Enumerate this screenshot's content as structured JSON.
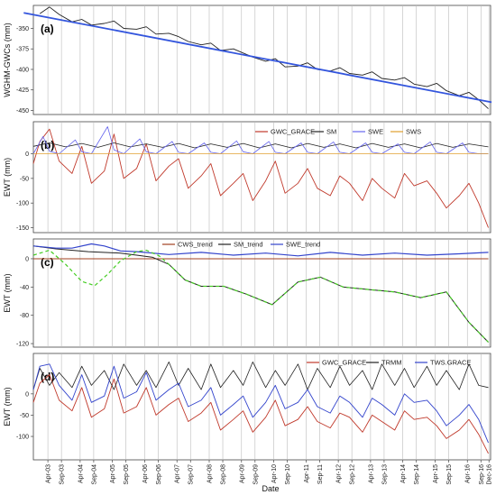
{
  "chart_data": [
    {
      "type": "line",
      "panel_label": "(a)",
      "ylabel": "WGHM-GWCs (mm)",
      "ylim": [
        -455,
        -322
      ],
      "yticks": [
        -350,
        -375,
        -400,
        -425,
        -450
      ],
      "series": [
        {
          "color": "#222222",
          "width": 0.9,
          "x": [
            2003.0,
            2003.3,
            2003.6,
            2004.0,
            2004.3,
            2004.6,
            2005.0,
            2005.3,
            2005.6,
            2006.0,
            2006.3,
            2006.6,
            2007.0,
            2007.3,
            2007.6,
            2008.0,
            2008.3,
            2008.6,
            2009.0,
            2009.3,
            2009.6,
            2010.0,
            2010.3,
            2010.6,
            2011.0,
            2011.3,
            2011.6,
            2012.0,
            2012.3,
            2012.6,
            2013.0,
            2013.3,
            2013.6,
            2014.0,
            2014.3,
            2014.6,
            2015.0,
            2015.3,
            2015.6,
            2016.0,
            2016.3,
            2016.6,
            2016.9
          ],
          "values": [
            -332,
            -324,
            -333,
            -342,
            -339,
            -346,
            -344,
            -341,
            -350,
            -351,
            -348,
            -357,
            -356,
            -360,
            -366,
            -370,
            -368,
            -377,
            -375,
            -380,
            -385,
            -390,
            -387,
            -397,
            -396,
            -392,
            -400,
            -402,
            -398,
            -405,
            -407,
            -403,
            -411,
            -413,
            -410,
            -418,
            -421,
            -417,
            -426,
            -432,
            -428,
            -437,
            -448
          ]
        },
        {
          "color": "#3355dd",
          "width": 1.8,
          "x": [
            2002.5,
            2017.0
          ],
          "values": [
            -331,
            -440
          ]
        }
      ]
    },
    {
      "type": "line",
      "panel_label": "(b)",
      "ylabel": "EWT (mm)",
      "ylim": [
        -160,
        65
      ],
      "yticks": [
        0,
        -50,
        -100,
        -150
      ],
      "legend": [
        "GWC_GRACE",
        "SM",
        "SWE",
        "SWS"
      ],
      "series": [
        {
          "name": "GWC_GRACE",
          "color": "#c0392b",
          "width": 0.9,
          "x": [
            2002.8,
            2003.0,
            2003.3,
            2003.6,
            2004.0,
            2004.3,
            2004.6,
            2005.0,
            2005.3,
            2005.6,
            2006.0,
            2006.3,
            2006.6,
            2007.0,
            2007.3,
            2007.6,
            2008.0,
            2008.3,
            2008.6,
            2009.0,
            2009.3,
            2009.6,
            2010.0,
            2010.3,
            2010.6,
            2011.0,
            2011.3,
            2011.6,
            2012.0,
            2012.3,
            2012.6,
            2013.0,
            2013.3,
            2013.6,
            2014.0,
            2014.3,
            2014.6,
            2015.0,
            2015.3,
            2015.6,
            2016.0,
            2016.3,
            2016.6,
            2016.9
          ],
          "values": [
            -20,
            25,
            50,
            -15,
            -40,
            15,
            -60,
            -35,
            40,
            -50,
            -30,
            20,
            -55,
            -25,
            -10,
            -70,
            -45,
            -20,
            -85,
            -60,
            -40,
            -95,
            -55,
            -15,
            -80,
            -60,
            -30,
            -70,
            -85,
            -45,
            -60,
            -95,
            -50,
            -70,
            -90,
            -40,
            -65,
            -55,
            -80,
            -110,
            -85,
            -60,
            -100,
            -150
          ]
        },
        {
          "name": "SM",
          "color": "#222222",
          "width": 0.8,
          "x": [
            2002.8,
            2003.3,
            2003.8,
            2004.3,
            2004.8,
            2005.3,
            2005.8,
            2006.3,
            2006.8,
            2007.3,
            2007.8,
            2008.3,
            2008.8,
            2009.3,
            2009.8,
            2010.3,
            2010.8,
            2011.3,
            2011.8,
            2012.3,
            2012.8,
            2013.3,
            2013.8,
            2014.3,
            2014.8,
            2015.3,
            2015.8,
            2016.3,
            2016.9
          ],
          "values": [
            15,
            22,
            14,
            21,
            13,
            22,
            14,
            20,
            13,
            21,
            12,
            20,
            13,
            21,
            12,
            20,
            12,
            21,
            13,
            20,
            12,
            21,
            13,
            20,
            12,
            21,
            13,
            20,
            14
          ]
        },
        {
          "name": "SWE",
          "color": "#6666ee",
          "width": 0.8,
          "x": [
            2002.8,
            2003.1,
            2003.3,
            2003.6,
            2004.1,
            2004.3,
            2004.6,
            2005.1,
            2005.3,
            2005.6,
            2006.1,
            2006.3,
            2006.6,
            2007.1,
            2007.3,
            2007.6,
            2008.1,
            2008.3,
            2008.6,
            2009.1,
            2009.3,
            2009.6,
            2010.1,
            2010.3,
            2010.6,
            2011.1,
            2011.3,
            2011.6,
            2012.1,
            2012.3,
            2012.6,
            2013.1,
            2013.3,
            2013.6,
            2014.1,
            2014.3,
            2014.6,
            2015.1,
            2015.3,
            2015.6,
            2016.1,
            2016.3,
            2016.6,
            2016.9
          ],
          "values": [
            0,
            35,
            5,
            0,
            28,
            4,
            0,
            55,
            8,
            0,
            30,
            4,
            0,
            25,
            3,
            0,
            22,
            3,
            0,
            26,
            4,
            0,
            25,
            3,
            0,
            22,
            3,
            0,
            24,
            3,
            0,
            22,
            3,
            0,
            20,
            3,
            0,
            24,
            3,
            0,
            22,
            3,
            0,
            0
          ]
        },
        {
          "name": "SWS",
          "color": "#e0a030",
          "width": 0.8,
          "x": [
            2002.8,
            2016.9
          ],
          "values": [
            0,
            0
          ]
        }
      ]
    },
    {
      "type": "line",
      "panel_label": "(c)",
      "ylabel": "EWT (mm)",
      "ylim": [
        -125,
        28
      ],
      "yticks": [
        0,
        -40,
        -80,
        -120
      ],
      "legend": [
        "CWS_trend",
        "SM_trend",
        "SWE_trend"
      ],
      "series": [
        {
          "name": "CWS_trend",
          "color": "#a04020",
          "width": 1.0,
          "x": [
            2002.8,
            2016.9
          ],
          "values": [
            0,
            0
          ]
        },
        {
          "name": "SM_trend",
          "color": "#222222",
          "width": 1.0,
          "x": [
            2002.8,
            2003.5,
            2004.5,
            2005.5,
            2006.0,
            2006.5,
            2007.0,
            2007.5,
            2008.0,
            2008.7,
            2009.4,
            2010.2,
            2011.0,
            2011.7,
            2012.4,
            2013.3,
            2014.0,
            2014.8,
            2015.6,
            2016.3,
            2016.9
          ],
          "values": [
            18,
            14,
            10,
            8,
            5,
            2,
            -8,
            -30,
            -39,
            -39,
            -50,
            -65,
            -33,
            -26,
            -40,
            -44,
            -47,
            -55,
            -47,
            -90,
            -118
          ]
        },
        {
          "name": "SWE_trend",
          "color": "#3344cc",
          "width": 1.2,
          "x": [
            2002.8,
            2003.5,
            2004.0,
            2004.6,
            2005.0,
            2005.5,
            2006.0,
            2007.0,
            2008.0,
            2009.0,
            2010.0,
            2011.0,
            2012.0,
            2013.0,
            2014.0,
            2015.0,
            2016.0,
            2016.9
          ],
          "values": [
            18,
            15,
            15,
            21,
            18,
            11,
            10,
            6,
            9,
            5,
            8,
            4,
            9,
            5,
            8,
            5,
            7,
            9
          ]
        },
        {
          "name": "",
          "color": "#44cc22",
          "width": 1.2,
          "dash": "4 3",
          "x": [
            2002.8,
            2003.3,
            2003.8,
            2004.3,
            2004.7,
            2005.1,
            2005.5,
            2006.0,
            2006.3,
            2006.7,
            2007.0,
            2007.5,
            2008.0,
            2008.7,
            2009.4,
            2010.2,
            2011.0,
            2011.7,
            2012.4,
            2013.3,
            2014.0,
            2014.8,
            2015.6,
            2016.3,
            2016.9
          ],
          "values": [
            5,
            12,
            -8,
            -32,
            -38,
            -22,
            -3,
            10,
            12,
            4,
            -8,
            -30,
            -39,
            -39,
            -50,
            -65,
            -33,
            -26,
            -40,
            -44,
            -47,
            -55,
            -47,
            -90,
            -118
          ]
        }
      ]
    },
    {
      "type": "line",
      "panel_label": "(d)",
      "ylabel": "EWT (mm)",
      "ylim": [
        -155,
        95
      ],
      "yticks": [
        0,
        -50,
        -100
      ],
      "legend": [
        "GWC_GRACE",
        "TRMM",
        "TWS.GRACE"
      ],
      "series": [
        {
          "name": "GWC_GRACE",
          "color": "#c0392b",
          "width": 0.9,
          "x": [
            2002.8,
            2003.0,
            2003.3,
            2003.6,
            2004.0,
            2004.3,
            2004.6,
            2005.0,
            2005.3,
            2005.6,
            2006.0,
            2006.3,
            2006.6,
            2007.0,
            2007.3,
            2007.6,
            2008.0,
            2008.3,
            2008.6,
            2009.0,
            2009.3,
            2009.6,
            2010.0,
            2010.3,
            2010.6,
            2011.0,
            2011.3,
            2011.6,
            2012.0,
            2012.3,
            2012.6,
            2013.0,
            2013.3,
            2013.6,
            2014.0,
            2014.3,
            2014.6,
            2015.0,
            2015.3,
            2015.6,
            2016.0,
            2016.3,
            2016.6,
            2016.9
          ],
          "values": [
            -20,
            25,
            45,
            -15,
            -40,
            15,
            -55,
            -35,
            35,
            -45,
            -30,
            15,
            -50,
            -25,
            -10,
            -65,
            -45,
            -20,
            -85,
            -60,
            -40,
            -90,
            -55,
            -15,
            -75,
            -60,
            -30,
            -65,
            -80,
            -45,
            -55,
            -90,
            -50,
            -65,
            -85,
            -40,
            -60,
            -55,
            -75,
            -105,
            -85,
            -60,
            -95,
            -140
          ]
        },
        {
          "name": "TRMM",
          "color": "#222222",
          "width": 0.8,
          "x": [
            2002.8,
            2003.0,
            2003.3,
            2003.6,
            2004.0,
            2004.3,
            2004.6,
            2005.0,
            2005.3,
            2005.6,
            2006.0,
            2006.3,
            2006.6,
            2007.0,
            2007.3,
            2007.6,
            2008.0,
            2008.3,
            2008.6,
            2009.0,
            2009.3,
            2009.6,
            2010.0,
            2010.3,
            2010.6,
            2011.0,
            2011.3,
            2011.6,
            2012.0,
            2012.3,
            2012.6,
            2013.0,
            2013.3,
            2013.6,
            2014.0,
            2014.3,
            2014.6,
            2015.0,
            2015.3,
            2015.6,
            2016.0,
            2016.3,
            2016.6,
            2016.9
          ],
          "values": [
            10,
            60,
            20,
            50,
            15,
            65,
            20,
            55,
            10,
            70,
            20,
            55,
            15,
            75,
            20,
            60,
            10,
            70,
            15,
            55,
            20,
            75,
            15,
            55,
            20,
            70,
            10,
            60,
            15,
            65,
            20,
            55,
            10,
            70,
            20,
            60,
            15,
            65,
            20,
            55,
            10,
            70,
            20,
            15
          ]
        },
        {
          "name": "TWS.GRACE",
          "color": "#3344cc",
          "width": 0.9,
          "x": [
            2002.8,
            2003.0,
            2003.3,
            2003.6,
            2004.0,
            2004.3,
            2004.6,
            2005.0,
            2005.3,
            2005.6,
            2006.0,
            2006.3,
            2006.6,
            2007.0,
            2007.3,
            2007.6,
            2008.0,
            2008.3,
            2008.6,
            2009.0,
            2009.3,
            2009.6,
            2010.0,
            2010.3,
            2010.6,
            2011.0,
            2011.3,
            2011.6,
            2012.0,
            2012.3,
            2012.6,
            2013.0,
            2013.3,
            2013.6,
            2014.0,
            2014.3,
            2014.6,
            2015.0,
            2015.3,
            2015.6,
            2016.0,
            2016.3,
            2016.6,
            2016.9
          ],
          "values": [
            10,
            65,
            70,
            20,
            -15,
            45,
            -20,
            -5,
            65,
            -10,
            5,
            50,
            -15,
            10,
            25,
            -30,
            -15,
            15,
            -50,
            -25,
            -5,
            -55,
            -20,
            20,
            -35,
            -20,
            10,
            -30,
            -45,
            -5,
            -20,
            -55,
            -10,
            -25,
            -50,
            0,
            -20,
            -15,
            -40,
            -75,
            -50,
            -25,
            -60,
            -115
          ]
        }
      ]
    }
  ],
  "xaxis": {
    "title": "Date",
    "xlim": [
      2002.8,
      2016.97
    ],
    "ticks": [
      {
        "x": 2003.25,
        "label": "Apr-03"
      },
      {
        "x": 2003.67,
        "label": "Sep-03"
      },
      {
        "x": 2004.25,
        "label": "Apr-04"
      },
      {
        "x": 2004.67,
        "label": "Sep-04"
      },
      {
        "x": 2005.25,
        "label": "Apr-05"
      },
      {
        "x": 2005.67,
        "label": "Sep-05"
      },
      {
        "x": 2006.25,
        "label": "Apr-06"
      },
      {
        "x": 2006.67,
        "label": "Sep-06"
      },
      {
        "x": 2007.25,
        "label": "Apr-07"
      },
      {
        "x": 2007.67,
        "label": "Sep-07"
      },
      {
        "x": 2008.25,
        "label": "Apr-08"
      },
      {
        "x": 2008.67,
        "label": "Sep-08"
      },
      {
        "x": 2009.25,
        "label": "Apr-09"
      },
      {
        "x": 2009.67,
        "label": "Sep-09"
      },
      {
        "x": 2010.25,
        "label": "Apr-10"
      },
      {
        "x": 2010.67,
        "label": "Sep-10"
      },
      {
        "x": 2011.25,
        "label": "Apr-11"
      },
      {
        "x": 2011.67,
        "label": "Sep-11"
      },
      {
        "x": 2012.25,
        "label": "Apr-12"
      },
      {
        "x": 2012.67,
        "label": "Sep-12"
      },
      {
        "x": 2013.25,
        "label": "Apr-13"
      },
      {
        "x": 2013.67,
        "label": "Sep-13"
      },
      {
        "x": 2014.25,
        "label": "Apr-14"
      },
      {
        "x": 2014.67,
        "label": "Sep-14"
      },
      {
        "x": 2015.25,
        "label": "Apr-15"
      },
      {
        "x": 2015.67,
        "label": "Sep-15"
      },
      {
        "x": 2016.25,
        "label": "Apr-16"
      },
      {
        "x": 2016.67,
        "label": "Sep-16"
      },
      {
        "x": 2016.92,
        "label": "Dec-16"
      }
    ]
  }
}
